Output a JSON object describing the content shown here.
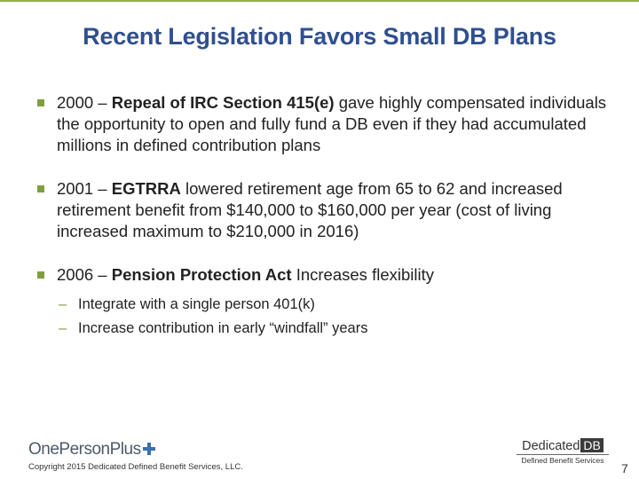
{
  "slide": {
    "title": "Recent Legislation Favors Small DB Plans",
    "bullets": [
      {
        "prefix": "2000 – ",
        "bold": "Repeal of IRC Section 415(e)",
        "rest": " gave highly compensated individuals the opportunity to open and fully fund a DB even if they had accumulated millions in defined contribution plans"
      },
      {
        "prefix": "2001 – ",
        "bold": "EGTRRA",
        "rest": " lowered retirement age from 65 to 62 and increased retirement benefit from $140,000 to $160,000 per year (cost of living increased maximum to $210,000 in 2016)"
      },
      {
        "prefix": "2006 – ",
        "bold": "Pension Protection Act",
        "rest": " Increases flexibility",
        "sub": [
          "Integrate with a single person 401(k)",
          "Increase contribution in early “windfall” years"
        ]
      }
    ],
    "sub_marker": "–"
  },
  "footer": {
    "logo_left": "OnePersonPlus",
    "copyright": "Copyright 2015 Dedicated Defined Benefit Services, LLC.",
    "logo_right_word": "Dedicated",
    "logo_right_badge": "DB",
    "logo_right_sub": "Defined Benefit Services",
    "page_number": "7"
  },
  "colors": {
    "title": "#2f4f8f",
    "accent": "#7e9f3f",
    "plus_icon": "#3a6fb0"
  }
}
